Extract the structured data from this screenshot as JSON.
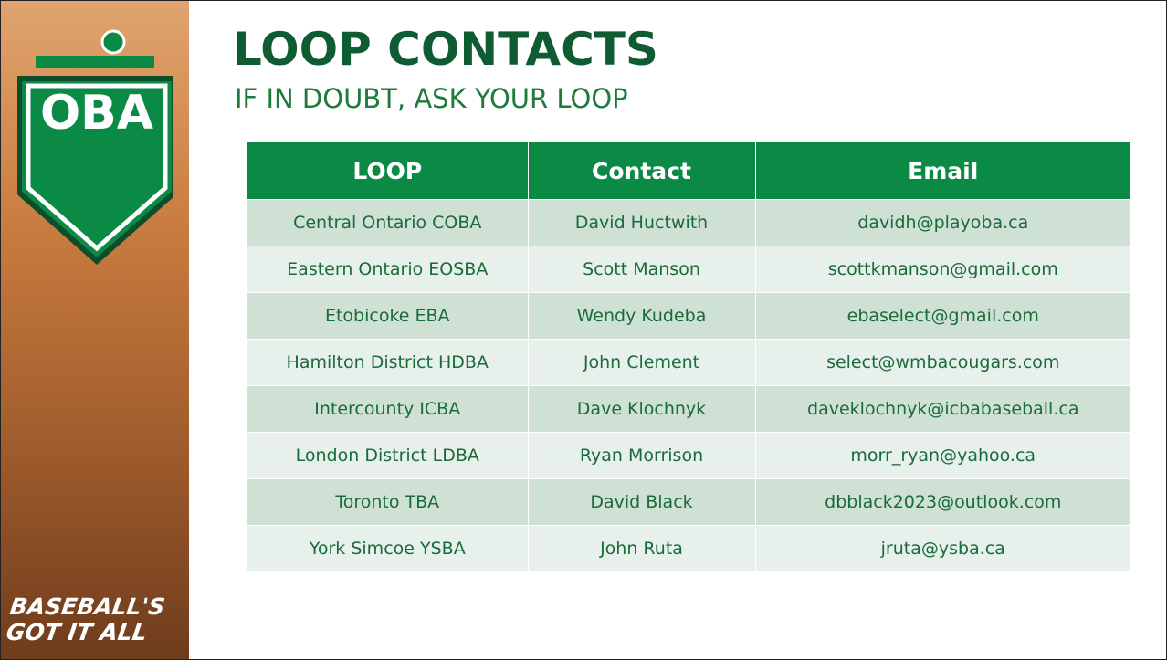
{
  "header": {
    "title": "LOOP CONTACTS",
    "subtitle": "IF IN DOUBT, ASK YOUR LOOP"
  },
  "sidebar": {
    "logo": "OBA",
    "tagline": [
      "BASEBALL'S",
      "GOT IT ALL"
    ]
  },
  "table": {
    "columns": [
      "LOOP",
      "Contact",
      "Email"
    ],
    "rows": [
      [
        "Central Ontario COBA",
        "David Huctwith",
        "davidh@playoba.ca"
      ],
      [
        "Eastern Ontario EOSBA",
        "Scott Manson",
        "scottkmanson@gmail.com"
      ],
      [
        "Etobicoke EBA",
        "Wendy Kudeba",
        "ebaselect@gmail.com"
      ],
      [
        "Hamilton District HDBA",
        "John Clement",
        "select@wmbacougars.com"
      ],
      [
        "Intercounty ICBA",
        "Dave Klochnyk",
        "daveklochnyk@icbabaseball.ca"
      ],
      [
        "London District LDBA",
        "Ryan Morrison",
        "morr_ryan@yahoo.ca"
      ],
      [
        "Toronto TBA",
        "David Black",
        "dbblack2023@outlook.com"
      ],
      [
        "York Simcoe YSBA",
        "John Ruta",
        "jruta@ysba.ca"
      ]
    ]
  }
}
